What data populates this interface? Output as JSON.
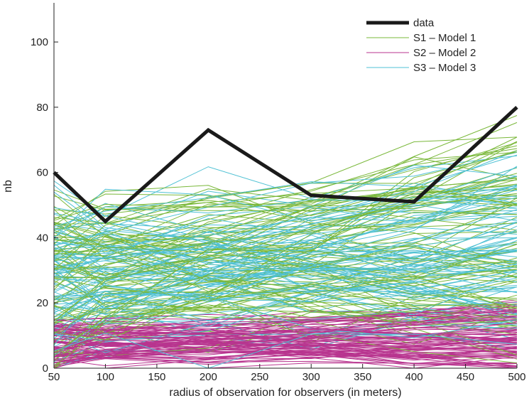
{
  "chart_data": {
    "type": "line",
    "title": "",
    "xlabel": "radius of observation for observers (in meters)",
    "ylabel": "nb",
    "x": [
      50,
      100,
      200,
      300,
      400,
      500
    ],
    "xlim": [
      50,
      500
    ],
    "ylim": [
      0,
      112
    ],
    "xticks": [
      50,
      100,
      150,
      200,
      250,
      300,
      350,
      400,
      450,
      500
    ],
    "yticks": [
      0,
      20,
      40,
      60,
      80,
      100
    ],
    "grid": false,
    "legend_position": "top-right",
    "series": [
      {
        "name": "data",
        "color": "#1a1a1a",
        "width": 5,
        "values": [
          60,
          45,
          73,
          53,
          51,
          80
        ]
      }
    ],
    "model_series": [
      {
        "name": "S1 – Model 1",
        "color": "#7ab83a",
        "width": 1,
        "count": 90,
        "range_start": [
          2,
          52
        ],
        "range_end": [
          8,
          75
        ]
      },
      {
        "name": "S2 – Model 2",
        "color": "#b8358f",
        "width": 1,
        "count": 90,
        "range_start": [
          0,
          14
        ],
        "range_end": [
          0,
          20
        ]
      },
      {
        "name": "S3 – Model 3",
        "color": "#4fc1d4",
        "width": 1,
        "count": 90,
        "range_start": [
          2,
          52
        ],
        "range_end": [
          8,
          63
        ]
      }
    ]
  }
}
